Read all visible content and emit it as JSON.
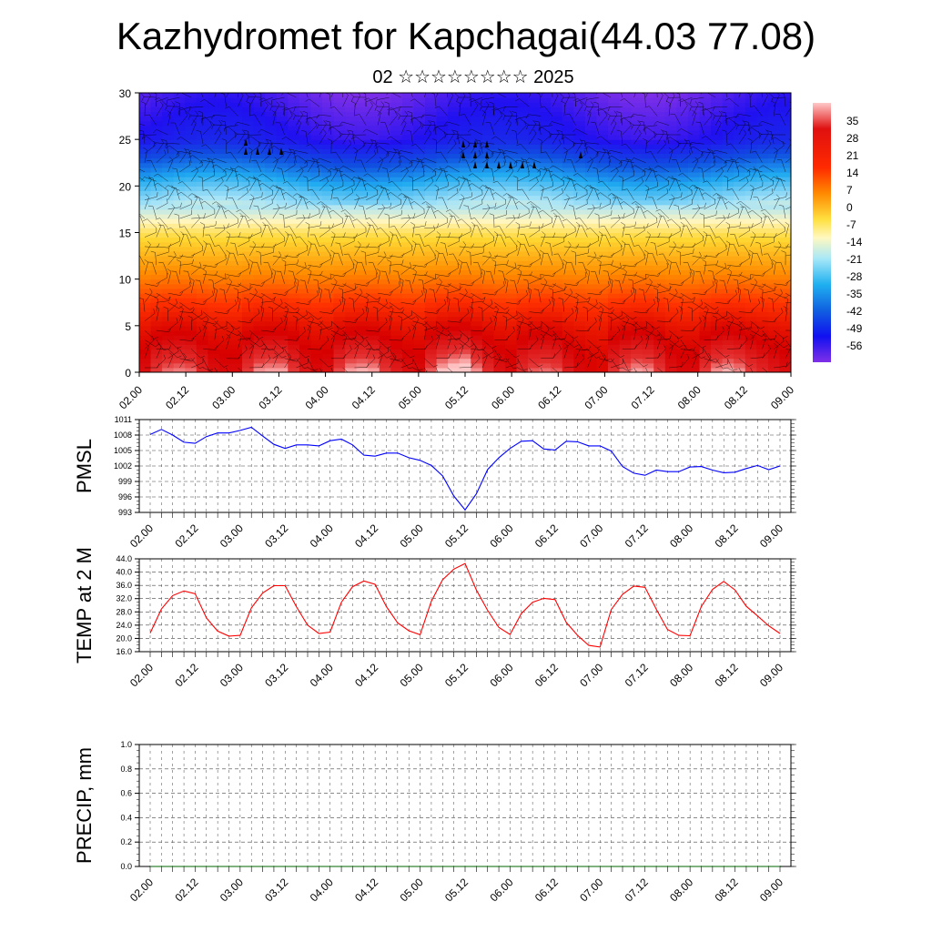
{
  "title": "Kazhydromet for Kapchagai(44.03 77.08)",
  "subtitle": "02 ☆☆☆☆☆☆☆☆ 2025",
  "chart_data": [
    {
      "type": "heatmap",
      "title": "",
      "xlabel": "",
      "ylabel": "",
      "x_ticks": [
        "02.00",
        "02.12",
        "03.00",
        "03.12",
        "04.00",
        "04.12",
        "05.00",
        "05.12",
        "06.00",
        "06.12",
        "07.00",
        "07.12",
        "08.00",
        "08.12",
        "09.00"
      ],
      "ylim": [
        0,
        30
      ],
      "y_ticks": [
        0,
        5,
        10,
        15,
        20,
        25,
        30
      ],
      "colorbar_ticks": [
        35,
        28,
        21,
        14,
        7,
        0,
        -7,
        -14,
        -21,
        -28,
        -35,
        -42,
        -49,
        -56
      ],
      "colorbar_range": [
        -63,
        42
      ],
      "surface_temp_by_step": [
        22,
        30,
        33,
        34,
        33,
        27,
        22,
        21,
        21,
        30,
        35,
        36,
        36,
        30,
        24,
        21,
        22,
        31,
        36,
        37,
        36,
        30,
        25,
        22,
        21,
        32,
        38,
        41,
        43,
        35,
        28,
        23,
        21,
        28,
        32,
        33,
        32,
        25,
        21,
        18,
        17,
        29,
        33,
        36,
        35,
        30,
        23,
        21,
        21,
        30,
        35,
        37,
        35,
        30,
        27,
        24,
        22
      ],
      "temp_profile": [
        [
          0,
          30
        ],
        [
          5,
          18
        ],
        [
          10,
          2
        ],
        [
          15,
          -12
        ],
        [
          20,
          -32
        ],
        [
          25,
          -55
        ],
        [
          30,
          -60
        ]
      ],
      "grid": true
    },
    {
      "type": "line",
      "ylabel": "PMSL",
      "x_ticks": [
        "02.00",
        "02.12",
        "03.00",
        "03.12",
        "04.00",
        "04.12",
        "05.00",
        "05.12",
        "06.00",
        "06.12",
        "07.00",
        "07.12",
        "08.00",
        "08.12",
        "09.00"
      ],
      "ylim": [
        993,
        1011
      ],
      "y_ticks": [
        "993",
        "996",
        "999",
        "1002",
        "1005",
        "1008",
        "1011"
      ],
      "color": "#0000ff",
      "grid": true,
      "values": [
        1008.1,
        1009.1,
        1008,
        1006.6,
        1006.4,
        1007.7,
        1008.4,
        1008.4,
        1008.9,
        1009.5,
        1007.8,
        1006.2,
        1005.4,
        1006.1,
        1006.1,
        1005.9,
        1006.9,
        1007.2,
        1006.1,
        1004.1,
        1003.9,
        1004.5,
        1004.5,
        1003.6,
        1003.1,
        1002.1,
        1000.1,
        996.2,
        993.5,
        996.6,
        1001.3,
        1003.6,
        1005.4,
        1006.8,
        1006.9,
        1005.3,
        1005.1,
        1006.8,
        1006.7,
        1005.9,
        1005.9,
        1004.9,
        1001.9,
        1000.6,
        1000.2,
        1001.2,
        1000.9,
        1000.9,
        1001.8,
        1001.9,
        1001.2,
        1000.7,
        1000.8,
        1001.5,
        1002.1,
        1001.3,
        1002.0
      ]
    },
    {
      "type": "line",
      "ylabel": "TEMP at 2 M",
      "x_ticks": [
        "02.00",
        "02.12",
        "03.00",
        "03.12",
        "04.00",
        "04.12",
        "05.00",
        "05.12",
        "06.00",
        "06.12",
        "07.00",
        "07.12",
        "08.00",
        "08.12",
        "09.00"
      ],
      "ylim": [
        16,
        44
      ],
      "y_ticks": [
        "16.0",
        "20.0",
        "24.0",
        "28.0",
        "32.0",
        "36.0",
        "40.0",
        "44.0"
      ],
      "color": "#ff0000",
      "grid": true,
      "values": [
        21.6,
        28.9,
        32.9,
        34.3,
        33.5,
        26.2,
        22.2,
        20.7,
        20.9,
        29.2,
        33.7,
        35.9,
        35.9,
        29.6,
        24.0,
        21.5,
        21.9,
        30.9,
        35.6,
        37.3,
        36.3,
        29.6,
        24.7,
        22.3,
        21.1,
        31.2,
        37.7,
        40.9,
        42.6,
        34.6,
        28.5,
        23.3,
        21.2,
        27.5,
        30.9,
        32.1,
        31.7,
        24.8,
        20.9,
        17.9,
        17.4,
        28.7,
        33.3,
        35.8,
        35.4,
        28.8,
        22.7,
        20.9,
        20.8,
        29.6,
        34.8,
        37.2,
        34.6,
        29.7,
        26.8,
        23.8,
        21.5
      ]
    },
    {
      "type": "line",
      "ylabel": "PRECIP, mm",
      "x_ticks": [
        "02.00",
        "02.12",
        "03.00",
        "03.12",
        "04.00",
        "04.12",
        "05.00",
        "05.12",
        "06.00",
        "06.12",
        "07.00",
        "07.12",
        "08.00",
        "08.12",
        "09.00"
      ],
      "ylim": [
        0.0,
        1.0
      ],
      "y_ticks": [
        "0.0",
        "0.2",
        "0.4",
        "0.6",
        "0.8",
        "1.0"
      ],
      "color": "#006600",
      "grid": true,
      "values": [
        0,
        0,
        0,
        0,
        0,
        0,
        0,
        0,
        0,
        0,
        0,
        0,
        0,
        0,
        0,
        0,
        0,
        0,
        0,
        0,
        0,
        0,
        0,
        0,
        0,
        0,
        0,
        0,
        0,
        0,
        0,
        0,
        0,
        0,
        0,
        0,
        0,
        0,
        0,
        0,
        0,
        0,
        0,
        0,
        0,
        0,
        0,
        0,
        0,
        0,
        0,
        0,
        0,
        0,
        0,
        0,
        0
      ]
    }
  ]
}
